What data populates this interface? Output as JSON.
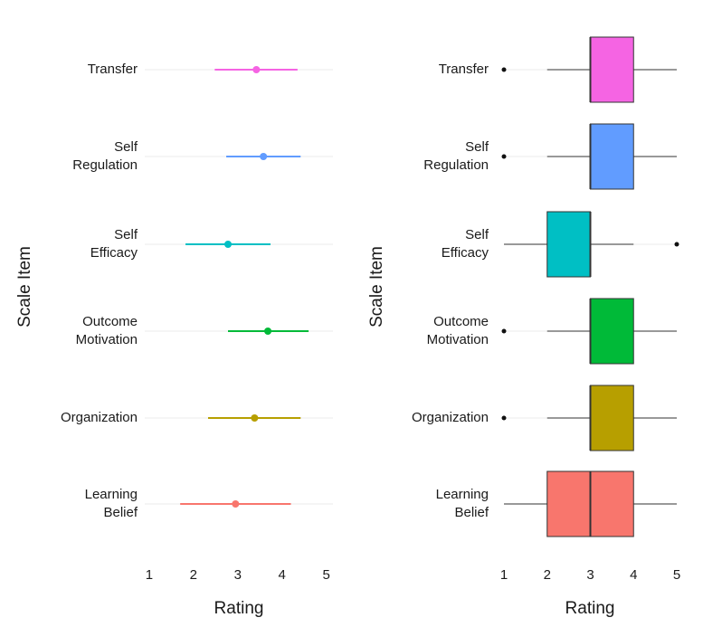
{
  "chart_data": [
    {
      "type": "pointrange",
      "xlabel": "Rating",
      "ylabel": "Scale Item",
      "xlim": [
        0.9,
        5.15
      ],
      "x_ticks": [
        "1",
        "2",
        "3",
        "4",
        "5"
      ],
      "grid": "horizontal-major",
      "legend": "none",
      "categories": [
        {
          "label": [
            "Learning",
            "Belief"
          ],
          "color": "#F8766D",
          "mean": 2.95,
          "low": 1.7,
          "high": 4.2
        },
        {
          "label": [
            "Organization"
          ],
          "color": "#B79F00",
          "mean": 3.38,
          "low": 2.33,
          "high": 4.42
        },
        {
          "label": [
            "Outcome",
            "Motivation"
          ],
          "color": "#00BA38",
          "mean": 3.68,
          "low": 2.78,
          "high": 4.6
        },
        {
          "label": [
            "Self",
            "Efficacy"
          ],
          "color": "#00BFC4",
          "mean": 2.78,
          "low": 1.82,
          "high": 3.74
        },
        {
          "label": [
            "Self",
            "Regulation"
          ],
          "color": "#619CFF",
          "mean": 3.58,
          "low": 2.74,
          "high": 4.42
        },
        {
          "label": [
            "Transfer"
          ],
          "color": "#F564E3",
          "mean": 3.42,
          "low": 2.48,
          "high": 4.35
        }
      ]
    },
    {
      "type": "boxplot",
      "xlabel": "Rating",
      "ylabel": "Scale Item",
      "xlim": [
        1,
        5
      ],
      "x_ticks": [
        "1",
        "2",
        "3",
        "4",
        "5"
      ],
      "grid": "horizontal-major",
      "legend": "none",
      "categories": [
        {
          "label": [
            "Learning",
            "Belief"
          ],
          "color": "#F8766D",
          "whisker_low": 1,
          "q1": 2,
          "median": 3,
          "q3": 4,
          "whisker_high": 5,
          "outliers": []
        },
        {
          "label": [
            "Organization"
          ],
          "color": "#B79F00",
          "whisker_low": 2,
          "q1": 3,
          "median": 3,
          "q3": 4,
          "whisker_high": 5,
          "outliers": [
            1
          ]
        },
        {
          "label": [
            "Outcome",
            "Motivation"
          ],
          "color": "#00BA38",
          "whisker_low": 2,
          "q1": 3,
          "median": 3,
          "q3": 4,
          "whisker_high": 5,
          "outliers": [
            1
          ]
        },
        {
          "label": [
            "Self",
            "Efficacy"
          ],
          "color": "#00BFC4",
          "whisker_low": 1,
          "q1": 2,
          "median": 3,
          "q3": 3,
          "whisker_high": 4,
          "outliers": [
            5
          ]
        },
        {
          "label": [
            "Self",
            "Regulation"
          ],
          "color": "#619CFF",
          "whisker_low": 2,
          "q1": 3,
          "median": 3,
          "q3": 4,
          "whisker_high": 5,
          "outliers": [
            1
          ]
        },
        {
          "label": [
            "Transfer"
          ],
          "color": "#F564E3",
          "whisker_low": 2,
          "q1": 3,
          "median": 3,
          "q3": 4,
          "whisker_high": 5,
          "outliers": [
            1
          ]
        }
      ]
    }
  ]
}
